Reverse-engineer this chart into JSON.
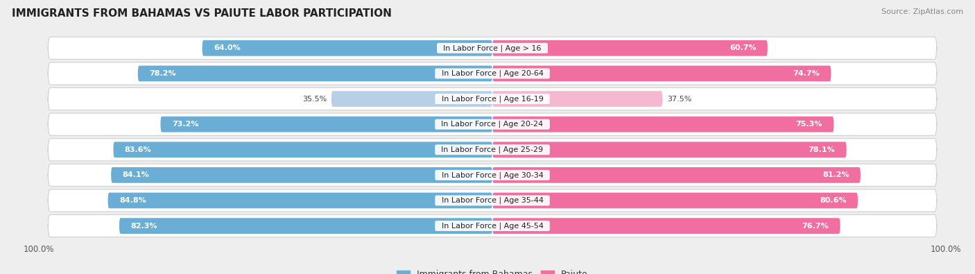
{
  "title": "IMMIGRANTS FROM BAHAMAS VS PAIUTE LABOR PARTICIPATION",
  "source": "Source: ZipAtlas.com",
  "categories": [
    "In Labor Force | Age > 16",
    "In Labor Force | Age 20-64",
    "In Labor Force | Age 16-19",
    "In Labor Force | Age 20-24",
    "In Labor Force | Age 25-29",
    "In Labor Force | Age 30-34",
    "In Labor Force | Age 35-44",
    "In Labor Force | Age 45-54"
  ],
  "bahamas_values": [
    64.0,
    78.2,
    35.5,
    73.2,
    83.6,
    84.1,
    84.8,
    82.3
  ],
  "paiute_values": [
    60.7,
    74.7,
    37.5,
    75.3,
    78.1,
    81.2,
    80.6,
    76.7
  ],
  "bahamas_color": "#6aaed6",
  "bahamas_color_light": "#b8cfe8",
  "paiute_color": "#f06fa0",
  "paiute_color_light": "#f5b8d0",
  "background_color": "#eeeeee",
  "max_value": 100.0,
  "bar_height": 0.62,
  "label_fontsize": 8,
  "title_fontsize": 11,
  "legend_fontsize": 9
}
